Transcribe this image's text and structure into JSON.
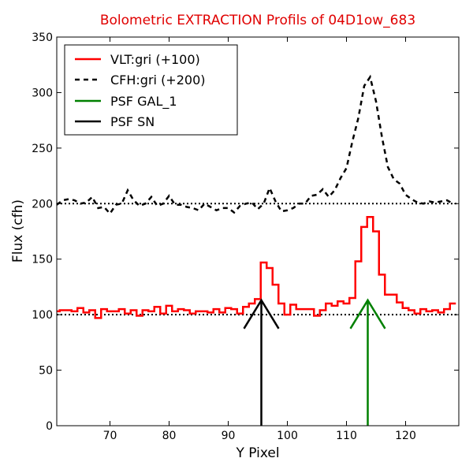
{
  "chart_data": {
    "type": "line",
    "title": "Bolometric EXTRACTION Profils of 04D1ow_683",
    "title_color": "#e00000",
    "xlabel": "Y Pixel",
    "ylabel": "Flux (cfh)",
    "xlim": [
      61,
      129
    ],
    "ylim": [
      0,
      350
    ],
    "xticks": [
      70,
      80,
      90,
      100,
      110,
      120
    ],
    "yticks": [
      0,
      50,
      100,
      150,
      200,
      250,
      300,
      350
    ],
    "grid": false,
    "legend_position": "top-left",
    "reference_lines": [
      {
        "y": 100,
        "style": "dotted",
        "color": "#000000"
      },
      {
        "y": 200,
        "style": "dotted",
        "color": "#000000"
      }
    ],
    "series": [
      {
        "name": "VLT:gri (+100)",
        "style": "steps",
        "color": "#ff0000",
        "x": [
          61,
          62,
          63,
          64,
          65,
          66,
          67,
          68,
          69,
          70,
          71,
          72,
          73,
          74,
          75,
          76,
          77,
          78,
          79,
          80,
          81,
          82,
          83,
          84,
          85,
          86,
          87,
          88,
          89,
          90,
          91,
          92,
          93,
          94,
          95,
          96,
          97,
          98,
          99,
          100,
          101,
          102,
          103,
          104,
          105,
          106,
          107,
          108,
          109,
          110,
          111,
          112,
          113,
          114,
          115,
          116,
          117,
          118,
          119,
          120,
          121,
          122,
          123,
          124,
          125,
          126,
          127,
          128
        ],
        "values": [
          103,
          104,
          104,
          103,
          106,
          102,
          104,
          97,
          105,
          103,
          103,
          105,
          101,
          104,
          99,
          104,
          103,
          107,
          101,
          108,
          103,
          105,
          104,
          101,
          103,
          103,
          102,
          105,
          102,
          106,
          105,
          101,
          107,
          110,
          114,
          147,
          142,
          127,
          110,
          100,
          109,
          105,
          105,
          105,
          99,
          104,
          110,
          108,
          112,
          110,
          115,
          148,
          179,
          188,
          175,
          136,
          118,
          118,
          111,
          106,
          104,
          101,
          105,
          103,
          104,
          102,
          105,
          110
        ]
      },
      {
        "name": "CFH:gri (+200)",
        "style": "dashed",
        "color": "#000000",
        "x": [
          61,
          62,
          63,
          64,
          65,
          66,
          67,
          68,
          69,
          70,
          71,
          72,
          73,
          74,
          75,
          76,
          77,
          78,
          79,
          80,
          81,
          82,
          83,
          84,
          85,
          86,
          87,
          88,
          89,
          90,
          91,
          92,
          93,
          94,
          95,
          96,
          97,
          98,
          99,
          100,
          101,
          102,
          103,
          104,
          105,
          106,
          107,
          108,
          109,
          110,
          111,
          112,
          113,
          114,
          115,
          116,
          117,
          118,
          119,
          120,
          121,
          122,
          123,
          124,
          125,
          126,
          127,
          128
        ],
        "values": [
          199,
          203,
          204,
          203,
          200,
          201,
          206,
          196,
          197,
          191,
          199,
          200,
          212,
          203,
          198,
          200,
          206,
          198,
          200,
          207,
          199,
          199,
          197,
          196,
          194,
          200,
          197,
          194,
          196,
          196,
          192,
          198,
          200,
          201,
          195,
          200,
          214,
          202,
          193,
          194,
          196,
          200,
          200,
          207,
          208,
          213,
          206,
          212,
          223,
          232,
          256,
          277,
          306,
          314,
          292,
          260,
          233,
          222,
          218,
          208,
          204,
          201,
          200,
          202,
          201,
          202,
          203,
          200
        ]
      }
    ],
    "psf_markers": [
      {
        "name": "PSF GAL_1",
        "x": 113.6,
        "peak": 113,
        "color": "#008000"
      },
      {
        "name": "PSF SN",
        "x": 95.6,
        "peak": 113,
        "color": "#000000"
      }
    ],
    "legend": [
      {
        "label": "VLT:gri (+100)",
        "color": "#ff0000",
        "style": "solid"
      },
      {
        "label": "CFH:gri (+200)",
        "color": "#000000",
        "style": "dashed"
      },
      {
        "label": "PSF GAL_1",
        "color": "#008000",
        "style": "solid"
      },
      {
        "label": "PSF SN",
        "color": "#000000",
        "style": "solid"
      }
    ]
  }
}
